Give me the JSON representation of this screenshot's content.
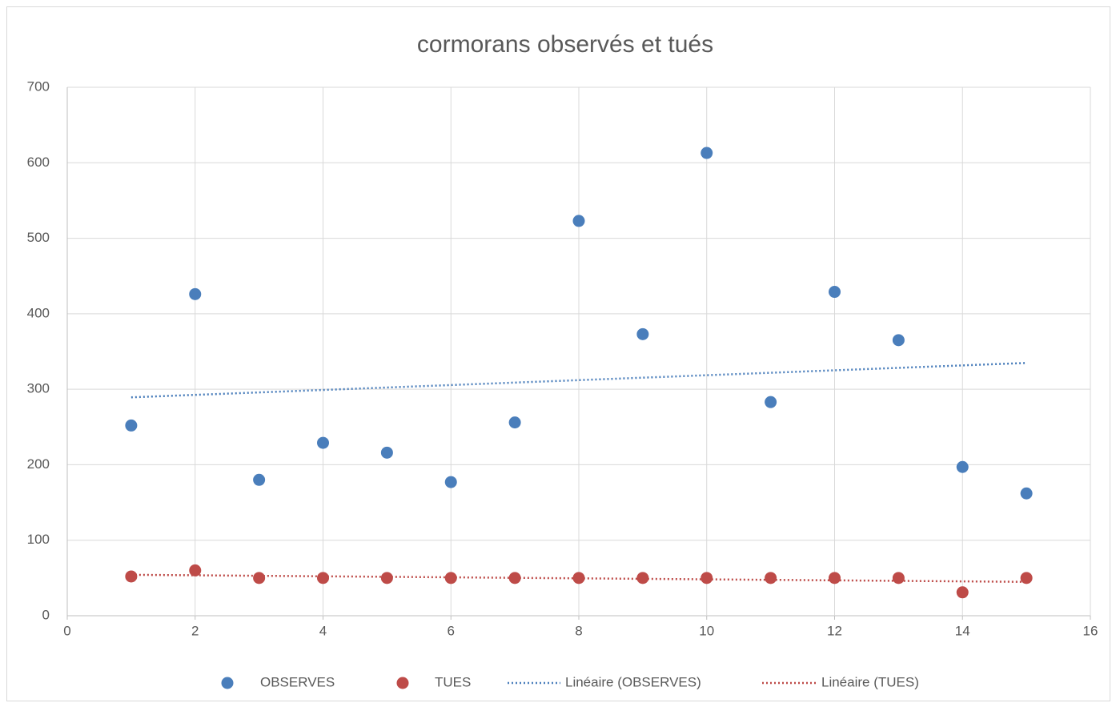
{
  "chart_data": {
    "type": "scatter",
    "title": "cormorans observés et tués",
    "x": [
      1,
      2,
      3,
      4,
      5,
      6,
      7,
      8,
      9,
      10,
      11,
      12,
      13,
      14,
      15
    ],
    "series": [
      {
        "name": "OBSERVES",
        "color": "#4a7ebb",
        "values": [
          252,
          426,
          180,
          229,
          216,
          177,
          256,
          523,
          373,
          613,
          283,
          429,
          365,
          197,
          162
        ],
        "trendline": {
          "type": "linear",
          "name": "Linéaire (OBSERVES)"
        }
      },
      {
        "name": "TUES",
        "color": "#be4b48",
        "values": [
          52,
          60,
          50,
          50,
          50,
          50,
          50,
          50,
          50,
          50,
          50,
          50,
          50,
          31,
          50
        ],
        "trendline": {
          "type": "linear",
          "name": "Linéaire (TUES)"
        }
      }
    ],
    "xlim": [
      0,
      16
    ],
    "xticks": [
      0,
      2,
      4,
      6,
      8,
      10,
      12,
      14,
      16
    ],
    "ylim": [
      0,
      700
    ],
    "yticks": [
      0,
      100,
      200,
      300,
      400,
      500,
      600,
      700
    ],
    "grid": true,
    "legend": "bottom"
  }
}
